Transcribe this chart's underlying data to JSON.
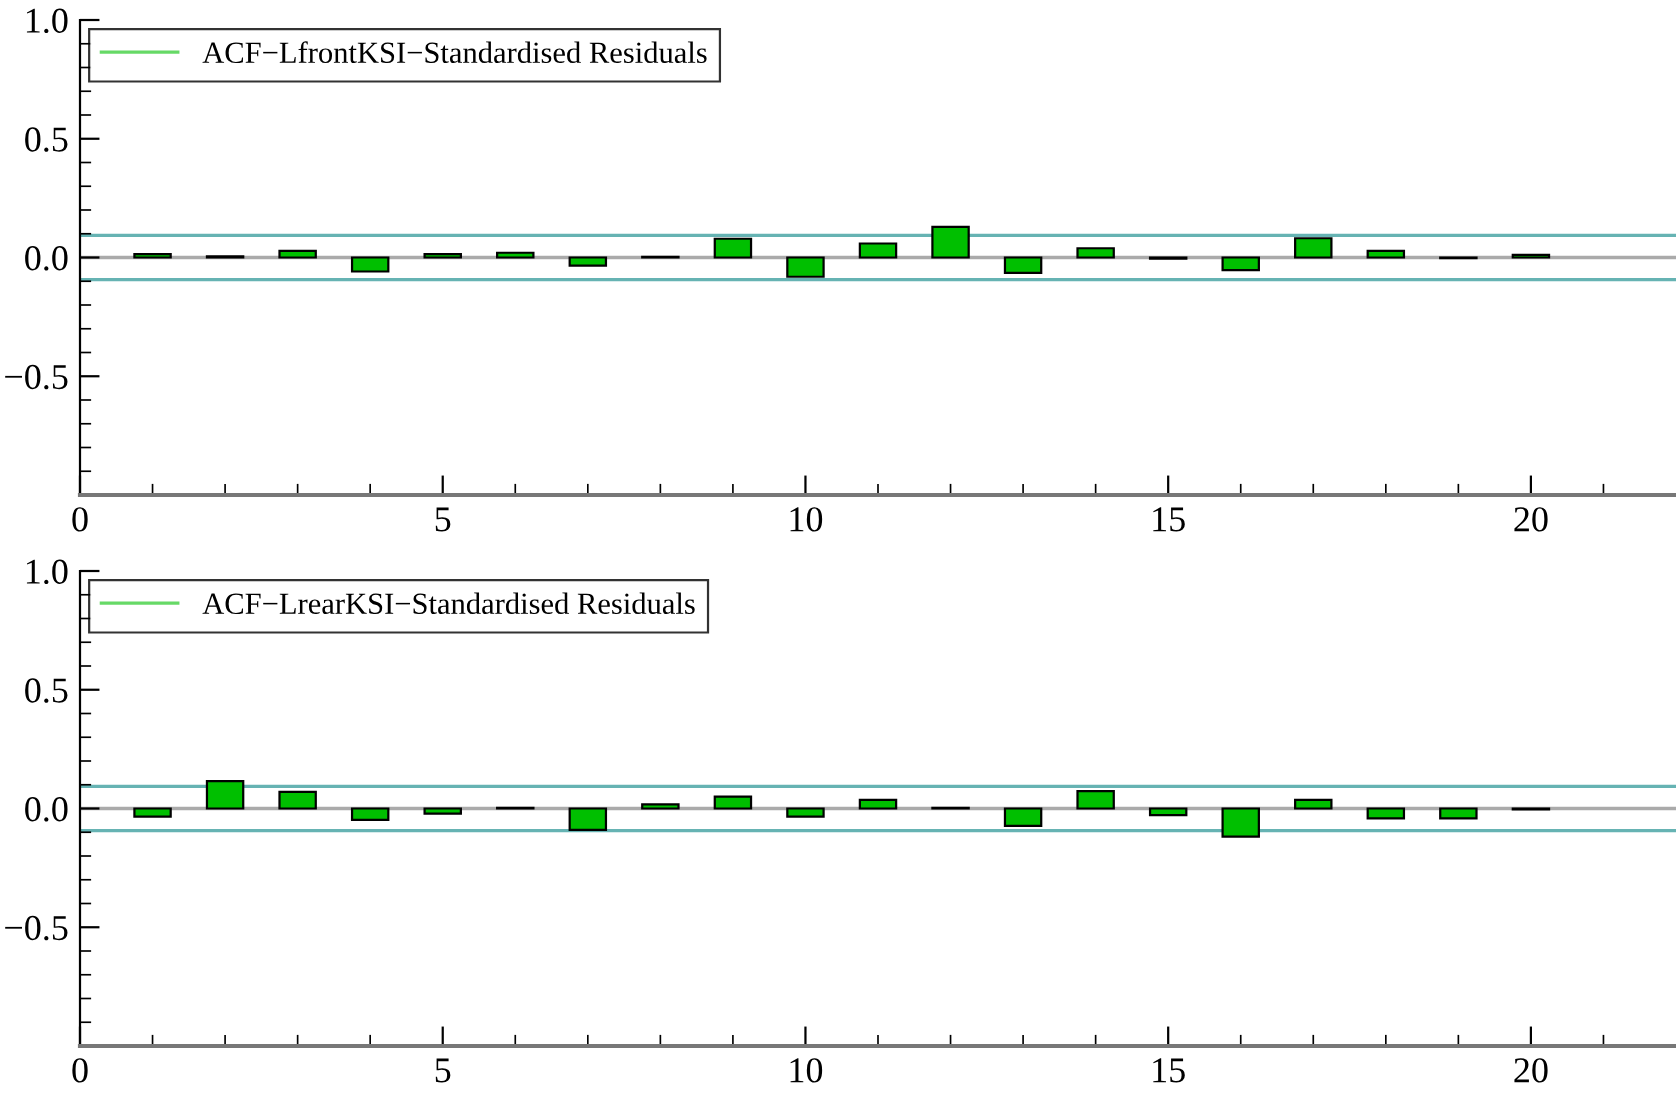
{
  "chart_data": [
    {
      "type": "bar",
      "x": [
        1,
        2,
        3,
        4,
        5,
        6,
        7,
        8,
        9,
        10,
        11,
        12,
        13,
        14,
        15,
        16,
        17,
        18,
        19,
        20
      ],
      "series": [
        {
          "name": "ACF−LfrontKSI−Standardised Residuals",
          "color": "#00bf00",
          "values": [
            0.014,
            0.005,
            0.028,
            -0.059,
            0.014,
            0.02,
            -0.034,
            0.003,
            0.079,
            -0.081,
            0.059,
            0.129,
            -0.065,
            0.039,
            -0.005,
            -0.053,
            0.081,
            0.028,
            -0.003,
            0.011
          ]
        }
      ],
      "xlim": [
        0,
        22
      ],
      "ylim": [
        -1,
        1
      ],
      "xticks": [
        0,
        {
          "value": 1,
          "label": null
        },
        {
          "value": 2,
          "label": null
        },
        {
          "value": 3,
          "label": null
        },
        {
          "value": 4,
          "label": null
        },
        5,
        {
          "value": 6,
          "label": null
        },
        {
          "value": 7,
          "label": null
        },
        {
          "value": 8,
          "label": null
        },
        {
          "value": 9,
          "label": null
        },
        10,
        {
          "value": 11,
          "label": null
        },
        {
          "value": 12,
          "label": null
        },
        {
          "value": 13,
          "label": null
        },
        {
          "value": 14,
          "label": null
        },
        15,
        {
          "value": 16,
          "label": null
        },
        {
          "value": 17,
          "label": null
        },
        {
          "value": 18,
          "label": null
        },
        {
          "value": 19,
          "label": null
        },
        20,
        {
          "value": 21,
          "label": null
        }
      ],
      "yticks": [
        {
          "value": -1.0,
          "label": null
        },
        {
          "value": -0.9,
          "label": null
        },
        {
          "value": -0.8,
          "label": null
        },
        {
          "value": -0.7,
          "label": null
        },
        {
          "value": -0.6,
          "label": null
        },
        {
          "value": -0.5,
          "label": "−0.5"
        },
        {
          "value": -0.4,
          "label": null
        },
        {
          "value": -0.3,
          "label": null
        },
        {
          "value": -0.2,
          "label": null
        },
        {
          "value": -0.1,
          "label": null
        },
        {
          "value": 0.0,
          "label": "0.0"
        },
        {
          "value": 0.1,
          "label": null
        },
        {
          "value": 0.2,
          "label": null
        },
        {
          "value": 0.3,
          "label": null
        },
        {
          "value": 0.4,
          "label": null
        },
        {
          "value": 0.5,
          "label": "0.5"
        },
        {
          "value": 0.6,
          "label": null
        },
        {
          "value": 0.7,
          "label": null
        },
        {
          "value": 0.8,
          "label": null
        },
        {
          "value": 0.9,
          "label": null
        },
        {
          "value": 1.0,
          "label": "1.0"
        }
      ],
      "ref_lines": [
        {
          "axis": "y",
          "value": 0,
          "color": "#aaaaaa"
        },
        {
          "axis": "y",
          "value": 0.093,
          "color": "#66b3b3"
        },
        {
          "axis": "y",
          "value": -0.093,
          "color": "#66b3b3"
        }
      ],
      "legend": "top left",
      "grid": false
    },
    {
      "type": "bar",
      "x": [
        1,
        2,
        3,
        4,
        5,
        6,
        7,
        8,
        9,
        10,
        11,
        12,
        13,
        14,
        15,
        16,
        17,
        18,
        19,
        20
      ],
      "series": [
        {
          "name": "ACF−LrearKSI−Standardised Residuals",
          "color": "#00bf00",
          "values": [
            -0.034,
            0.115,
            0.07,
            -0.048,
            -0.022,
            0.003,
            -0.09,
            0.017,
            0.05,
            -0.034,
            0.036,
            0.003,
            -0.073,
            0.073,
            -0.028,
            -0.118,
            0.036,
            -0.042,
            -0.042,
            -0.004
          ]
        }
      ],
      "xlim": [
        0,
        22
      ],
      "ylim": [
        -1,
        1
      ],
      "xticks": [
        0,
        {
          "value": 1,
          "label": null
        },
        {
          "value": 2,
          "label": null
        },
        {
          "value": 3,
          "label": null
        },
        {
          "value": 4,
          "label": null
        },
        5,
        {
          "value": 6,
          "label": null
        },
        {
          "value": 7,
          "label": null
        },
        {
          "value": 8,
          "label": null
        },
        {
          "value": 9,
          "label": null
        },
        10,
        {
          "value": 11,
          "label": null
        },
        {
          "value": 12,
          "label": null
        },
        {
          "value": 13,
          "label": null
        },
        {
          "value": 14,
          "label": null
        },
        15,
        {
          "value": 16,
          "label": null
        },
        {
          "value": 17,
          "label": null
        },
        {
          "value": 18,
          "label": null
        },
        {
          "value": 19,
          "label": null
        },
        20,
        {
          "value": 21,
          "label": null
        }
      ],
      "yticks": [
        {
          "value": -1.0,
          "label": null
        },
        {
          "value": -0.9,
          "label": null
        },
        {
          "value": -0.8,
          "label": null
        },
        {
          "value": -0.7,
          "label": null
        },
        {
          "value": -0.6,
          "label": null
        },
        {
          "value": -0.5,
          "label": "−0.5"
        },
        {
          "value": -0.4,
          "label": null
        },
        {
          "value": -0.3,
          "label": null
        },
        {
          "value": -0.2,
          "label": null
        },
        {
          "value": -0.1,
          "label": null
        },
        {
          "value": 0.0,
          "label": "0.0"
        },
        {
          "value": 0.1,
          "label": null
        },
        {
          "value": 0.2,
          "label": null
        },
        {
          "value": 0.3,
          "label": null
        },
        {
          "value": 0.4,
          "label": null
        },
        {
          "value": 0.5,
          "label": "0.5"
        },
        {
          "value": 0.6,
          "label": null
        },
        {
          "value": 0.7,
          "label": null
        },
        {
          "value": 0.8,
          "label": null
        },
        {
          "value": 0.9,
          "label": null
        },
        {
          "value": 1.0,
          "label": "1.0"
        }
      ],
      "ref_lines": [
        {
          "axis": "y",
          "value": 0,
          "color": "#aaaaaa"
        },
        {
          "axis": "y",
          "value": 0.093,
          "color": "#66b3b3"
        },
        {
          "axis": "y",
          "value": -0.093,
          "color": "#66b3b3"
        }
      ],
      "legend": "top left",
      "grid": false
    }
  ]
}
